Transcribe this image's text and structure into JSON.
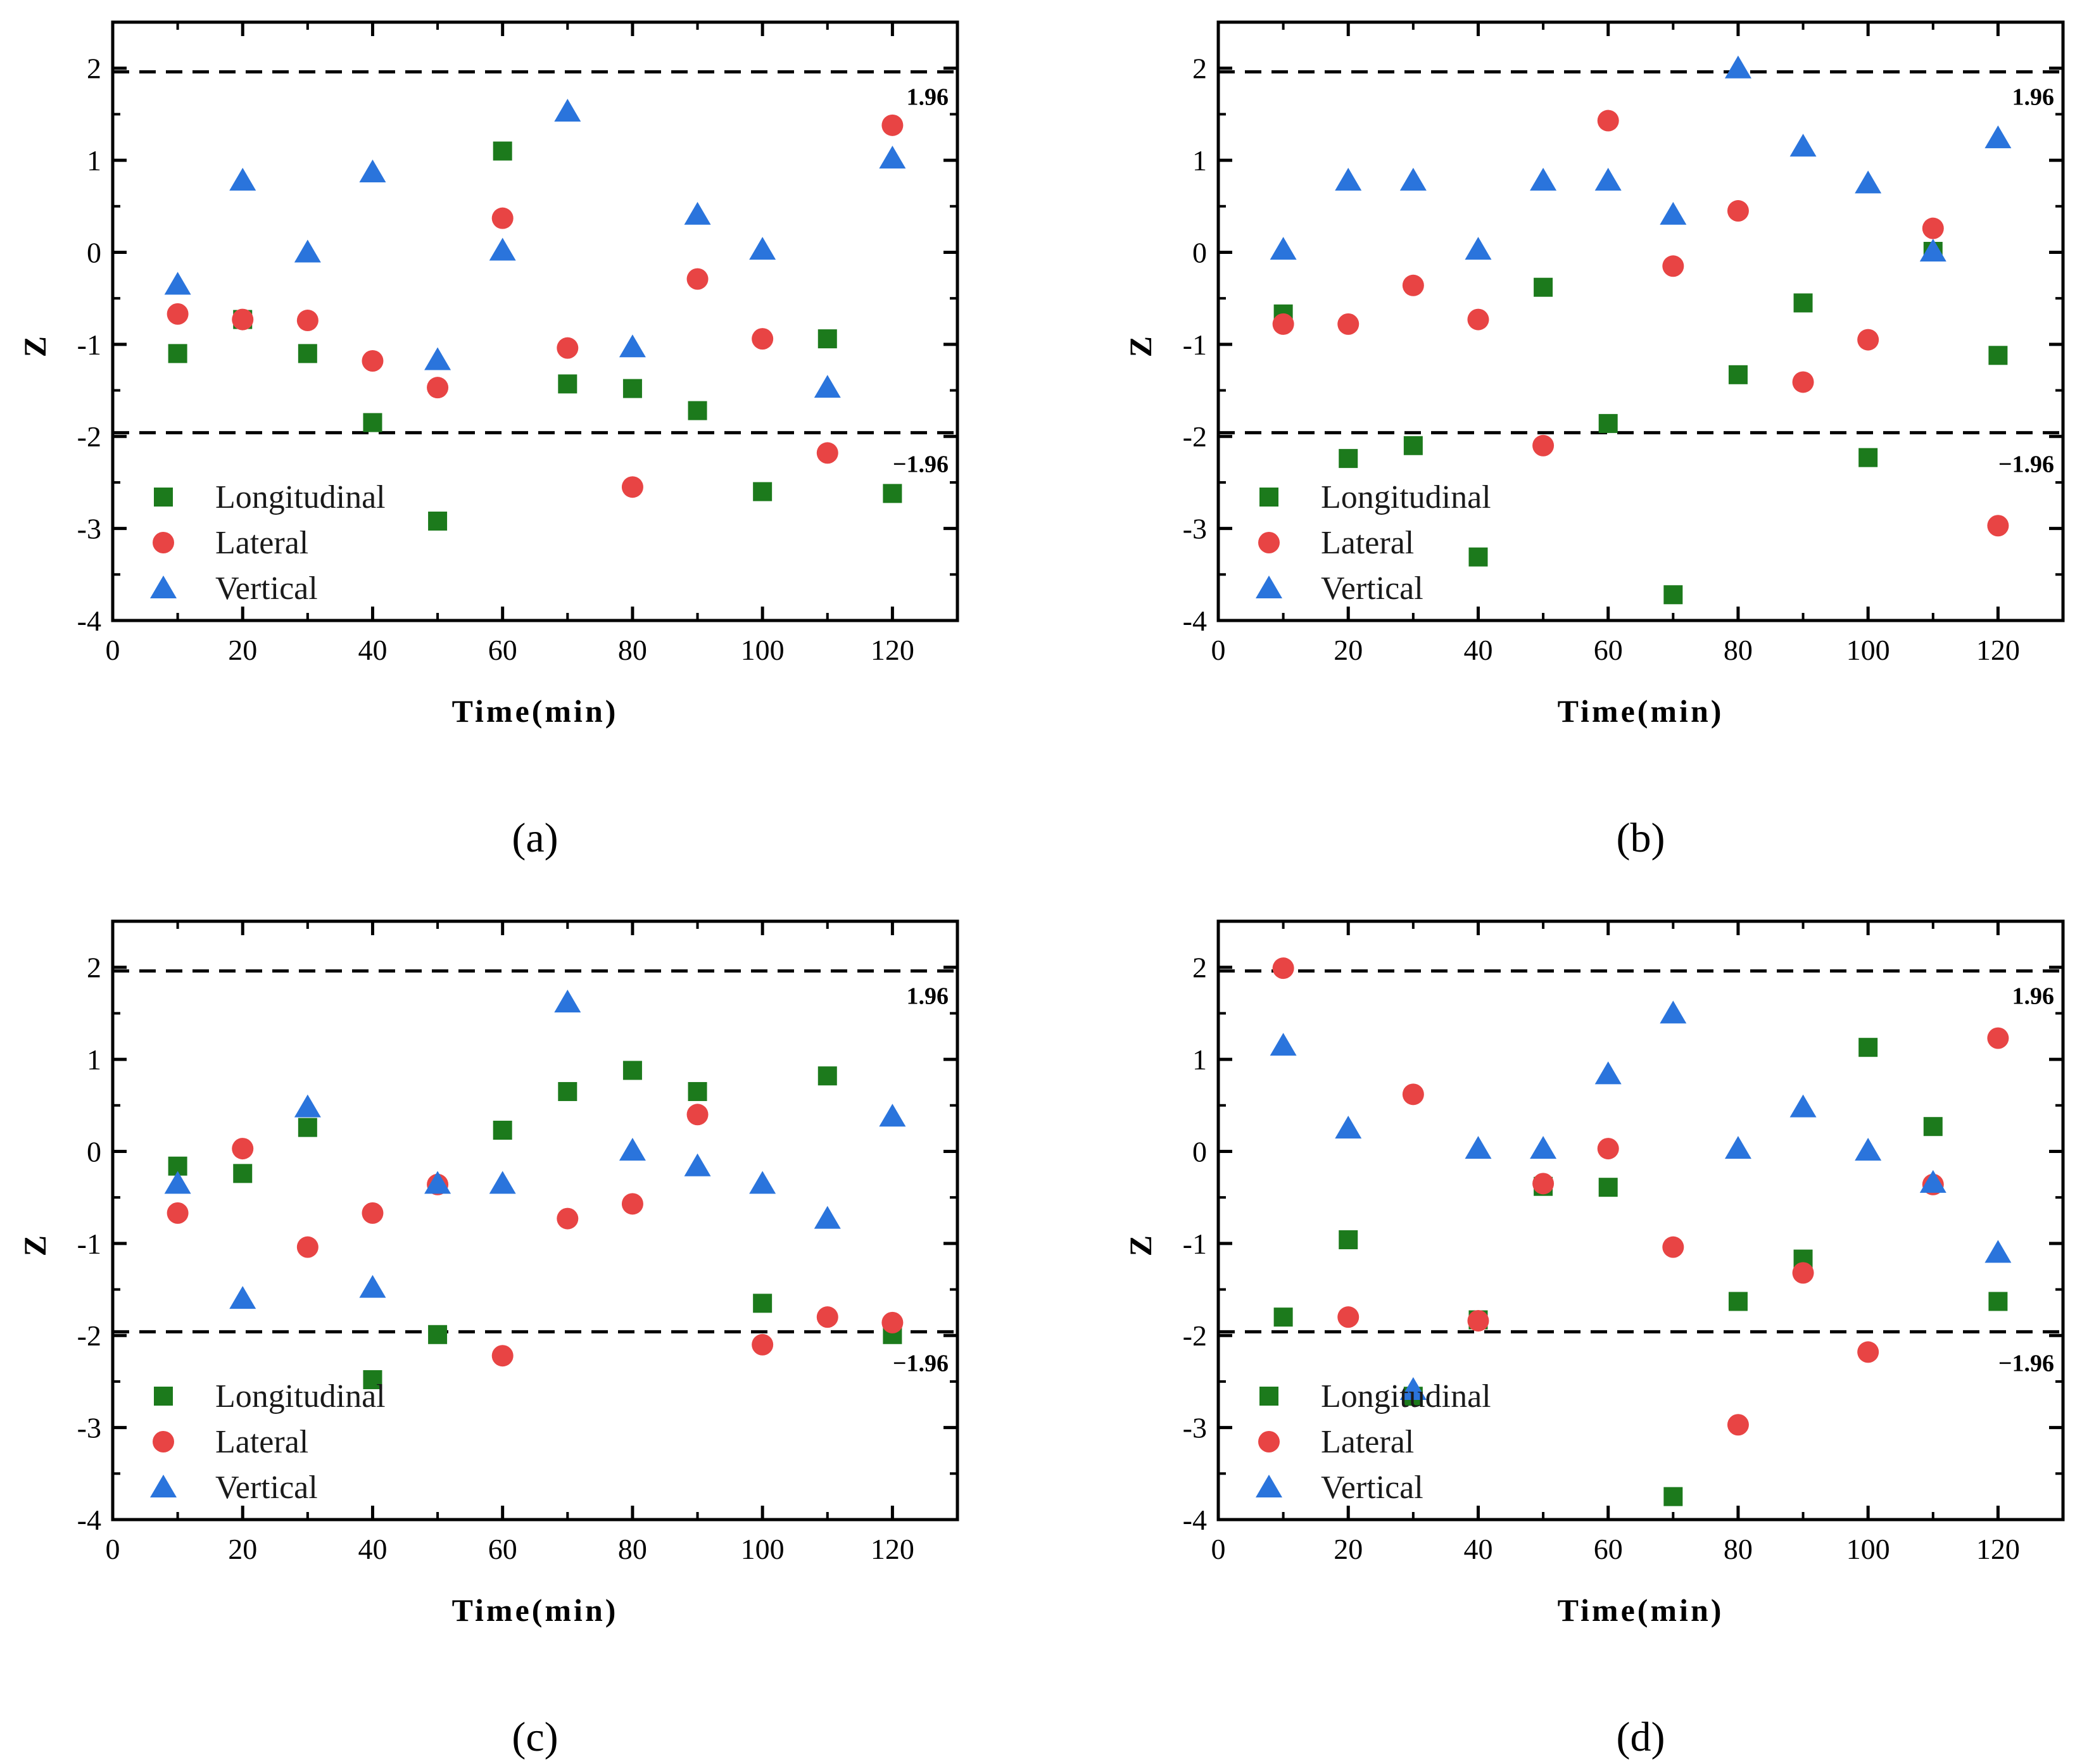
{
  "colors": {
    "longitudinal": "#1c7a1c",
    "lateral": "#e84444",
    "vertical": "#2a74dc",
    "axis": "#000000"
  },
  "chart_data": [
    {
      "type": "scatter",
      "panel_label": "(a)",
      "xlabel": "Time(min)",
      "ylabel": "Z",
      "xlim": [
        0,
        130
      ],
      "ylim": [
        -4,
        2.5
      ],
      "xticks": [
        "0",
        "20",
        "40",
        "60",
        "80",
        "100",
        "120"
      ],
      "yticks": [
        "-4",
        "-3",
        "-2",
        "-1",
        "0",
        "1",
        "2"
      ],
      "thresholds": [
        {
          "value": 1.96,
          "label": "1.96"
        },
        {
          "value": -1.96,
          "label": "−1.96"
        }
      ],
      "legend": [
        "Longitudinal",
        "Lateral",
        "Vertical"
      ],
      "x": [
        10,
        20,
        30,
        40,
        50,
        60,
        70,
        80,
        90,
        100,
        110,
        120
      ],
      "series": [
        {
          "name": "Longitudinal",
          "marker": "square",
          "values": [
            -1.1,
            -0.73,
            -1.1,
            -1.85,
            -2.92,
            1.1,
            -1.43,
            -1.48,
            -1.72,
            -2.6,
            -0.94,
            -2.62
          ]
        },
        {
          "name": "Lateral",
          "marker": "circle",
          "values": [
            -0.67,
            -0.73,
            -0.74,
            -1.18,
            -1.47,
            0.37,
            -1.04,
            -2.55,
            -0.29,
            -0.94,
            -2.18,
            1.38
          ]
        },
        {
          "name": "Vertical",
          "marker": "triangle",
          "values": [
            -0.35,
            0.78,
            0.0,
            0.87,
            -1.17,
            0.02,
            1.53,
            -1.03,
            0.41,
            0.03,
            -1.47,
            1.02
          ]
        }
      ]
    },
    {
      "type": "scatter",
      "panel_label": "(b)",
      "xlabel": "Time(min)",
      "ylabel": "Z",
      "xlim": [
        0,
        130
      ],
      "ylim": [
        -4,
        2.5
      ],
      "xticks": [
        "0",
        "20",
        "40",
        "60",
        "80",
        "100",
        "120"
      ],
      "yticks": [
        "-4",
        "-3",
        "-2",
        "-1",
        "0",
        "1",
        "2"
      ],
      "thresholds": [
        {
          "value": 1.96,
          "label": "1.96"
        },
        {
          "value": -1.96,
          "label": "−1.96"
        }
      ],
      "legend": [
        "Longitudinal",
        "Lateral",
        "Vertical"
      ],
      "x": [
        10,
        20,
        30,
        40,
        50,
        60,
        70,
        80,
        90,
        100,
        110,
        120
      ],
      "series": [
        {
          "name": "Longitudinal",
          "marker": "square",
          "values": [
            -0.67,
            -2.24,
            -2.1,
            -3.31,
            -0.38,
            -1.86,
            -3.72,
            -1.33,
            -0.55,
            -2.23,
            0.01,
            -1.12
          ]
        },
        {
          "name": "Lateral",
          "marker": "circle",
          "values": [
            -0.78,
            -0.78,
            -0.36,
            -0.73,
            -2.1,
            1.43,
            -0.15,
            0.45,
            -1.41,
            -0.95,
            0.26,
            -2.97
          ]
        },
        {
          "name": "Vertical",
          "marker": "triangle",
          "values": [
            0.03,
            0.78,
            0.78,
            0.03,
            0.78,
            0.78,
            0.41,
            2.0,
            1.15,
            0.75,
            0.01,
            1.24
          ]
        }
      ]
    },
    {
      "type": "scatter",
      "panel_label": "(c)",
      "xlabel": "Time(min)",
      "ylabel": "Z",
      "xlim": [
        0,
        130
      ],
      "ylim": [
        -4,
        2.5
      ],
      "xticks": [
        "0",
        "20",
        "40",
        "60",
        "80",
        "100",
        "120"
      ],
      "yticks": [
        "-4",
        "-3",
        "-2",
        "-1",
        "0",
        "1",
        "2"
      ],
      "thresholds": [
        {
          "value": 1.96,
          "label": "1.96"
        },
        {
          "value": -1.96,
          "label": "−1.96"
        }
      ],
      "legend": [
        "Longitudinal",
        "Lateral",
        "Vertical"
      ],
      "x": [
        10,
        20,
        30,
        40,
        50,
        60,
        70,
        80,
        90,
        100,
        110,
        120
      ],
      "series": [
        {
          "name": "Longitudinal",
          "marker": "square",
          "values": [
            -0.16,
            -0.24,
            0.26,
            -2.48,
            -1.99,
            0.23,
            0.65,
            0.88,
            0.65,
            -1.65,
            0.82,
            -1.99
          ]
        },
        {
          "name": "Lateral",
          "marker": "circle",
          "values": [
            -0.67,
            0.03,
            -1.04,
            -0.67,
            -0.36,
            -2.22,
            -0.73,
            -0.57,
            0.4,
            -2.1,
            -1.8,
            -1.86
          ]
        },
        {
          "name": "Vertical",
          "marker": "triangle",
          "values": [
            -0.35,
            -1.6,
            0.48,
            -1.48,
            -0.35,
            -0.35,
            1.62,
            0.01,
            -0.16,
            -0.35,
            -0.73,
            0.38
          ]
        }
      ]
    },
    {
      "type": "scatter",
      "panel_label": "(d)",
      "xlabel": "Time(min)",
      "ylabel": "Z",
      "xlim": [
        0,
        130
      ],
      "ylim": [
        -4,
        2.5
      ],
      "xticks": [
        "0",
        "20",
        "40",
        "60",
        "80",
        "100",
        "120"
      ],
      "yticks": [
        "-4",
        "-3",
        "-2",
        "-1",
        "0",
        "1",
        "2"
      ],
      "thresholds": [
        {
          "value": 1.96,
          "label": "1.96"
        },
        {
          "value": -1.96,
          "label": "−1.96"
        }
      ],
      "legend": [
        "Longitudinal",
        "Lateral",
        "Vertical"
      ],
      "x": [
        10,
        20,
        30,
        40,
        50,
        60,
        70,
        80,
        90,
        100,
        110,
        120
      ],
      "series": [
        {
          "name": "Longitudinal",
          "marker": "square",
          "values": [
            -1.8,
            -0.96,
            -2.66,
            -1.83,
            -0.38,
            -0.39,
            -3.75,
            -1.63,
            -1.17,
            1.13,
            0.27,
            -1.63
          ]
        },
        {
          "name": "Lateral",
          "marker": "circle",
          "values": [
            1.99,
            -1.8,
            0.62,
            -1.84,
            -0.35,
            0.03,
            -1.04,
            -2.97,
            -1.32,
            -2.18,
            -0.36,
            1.23
          ]
        },
        {
          "name": "Vertical",
          "marker": "triangle",
          "values": [
            1.15,
            0.25,
            -2.59,
            0.03,
            0.03,
            0.84,
            1.5,
            0.03,
            0.48,
            0.01,
            -0.34,
            -1.1
          ]
        }
      ]
    }
  ]
}
